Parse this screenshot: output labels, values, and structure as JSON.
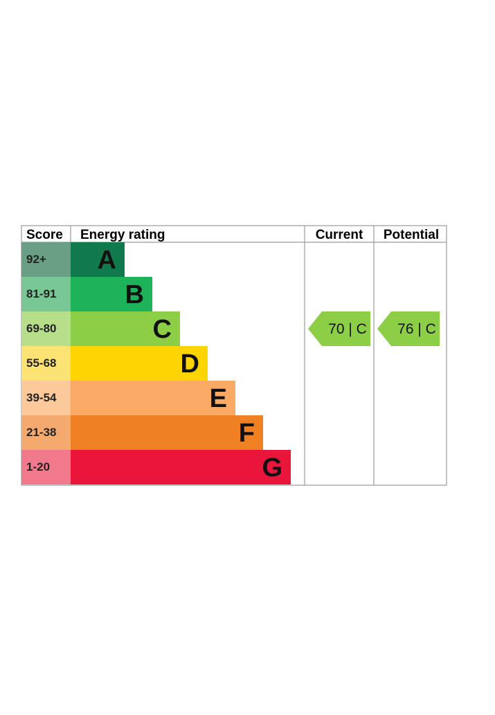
{
  "headers": {
    "score": "Score",
    "rating": "Energy rating",
    "current": "Current",
    "potential": "Potential"
  },
  "chart_data": {
    "type": "bar",
    "title": "",
    "bands": [
      {
        "band": "A",
        "range": "92+",
        "color": "#117a4c",
        "score_color": "#6b9f85"
      },
      {
        "band": "B",
        "range": "81-91",
        "color": "#1db35b",
        "score_color": "#79c795"
      },
      {
        "band": "C",
        "range": "69-80",
        "color": "#8cce46",
        "score_color": "#b7de8b"
      },
      {
        "band": "D",
        "range": "55-68",
        "color": "#fed500",
        "score_color": "#fde373"
      },
      {
        "band": "E",
        "range": "39-54",
        "color": "#fbaa65",
        "score_color": "#fcc99a"
      },
      {
        "band": "F",
        "range": "21-38",
        "color": "#ef8023",
        "score_color": "#f4aa6e"
      },
      {
        "band": "G",
        "range": "1-20",
        "color": "#e9153b",
        "score_color": "#f07a8c"
      }
    ],
    "current": {
      "value": 70,
      "band": "C",
      "label": "70 |  C",
      "color": "#8cce46"
    },
    "potential": {
      "value": 76,
      "band": "C",
      "label": "76 |  C",
      "color": "#8cce46"
    }
  }
}
